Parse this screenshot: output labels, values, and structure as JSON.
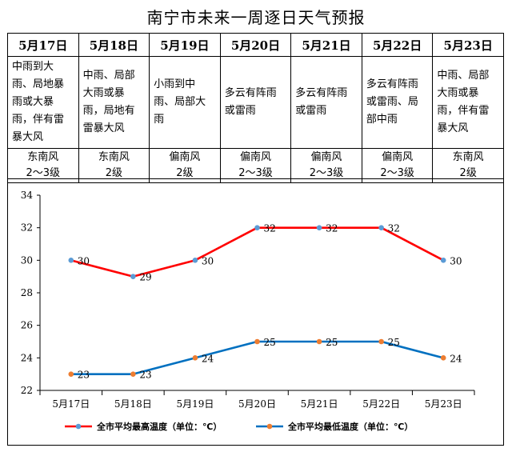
{
  "title": "南宁市未来一周逐日天气预报",
  "days": [
    {
      "date": "5月17日",
      "weather": "中雨到大雨、局地暴雨或大暴雨，伴有雷暴大风",
      "wind_dir": "东南风",
      "wind_level": "2～3级"
    },
    {
      "date": "5月18日",
      "weather": "中雨、局部大雨或暴雨，局地有雷暴大风",
      "wind_dir": "东南风",
      "wind_level": "2级"
    },
    {
      "date": "5月19日",
      "weather": "小雨到中雨、局部大雨",
      "wind_dir": "偏南风",
      "wind_level": "2级"
    },
    {
      "date": "5月20日",
      "weather": "多云有阵雨或雷雨",
      "wind_dir": "偏南风",
      "wind_level": "2～3级"
    },
    {
      "date": "5月21日",
      "weather": "多云有阵雨或雷雨",
      "wind_dir": "偏南风",
      "wind_level": "2～3级"
    },
    {
      "date": "5月22日",
      "weather": "多云有阵雨或雷雨、局部中雨",
      "wind_dir": "偏南风",
      "wind_level": "2～3级"
    },
    {
      "date": "5月23日",
      "weather": "中雨、局部大雨或暴雨，伴有雷暴大风",
      "wind_dir": "东南风",
      "wind_level": "2级"
    }
  ],
  "chart_data": {
    "type": "line",
    "categories": [
      "5月17日",
      "5月18日",
      "5月19日",
      "5月20日",
      "5月21日",
      "5月22日",
      "5月23日"
    ],
    "series": [
      {
        "name": "全市平均最高温度（单位：℃）",
        "values": [
          30,
          29,
          30,
          32,
          32,
          32,
          30
        ],
        "line_color": "#ff0000",
        "marker_color": "#5b9bd5"
      },
      {
        "name": "全市平均最低温度（单位：℃）",
        "values": [
          23,
          23,
          24,
          25,
          25,
          25,
          24
        ],
        "line_color": "#0070c0",
        "marker_color": "#ed7d31"
      }
    ],
    "ylim": [
      22,
      34
    ],
    "yticks": [
      22,
      24,
      26,
      28,
      30,
      32,
      34
    ],
    "legend": "bottom"
  }
}
